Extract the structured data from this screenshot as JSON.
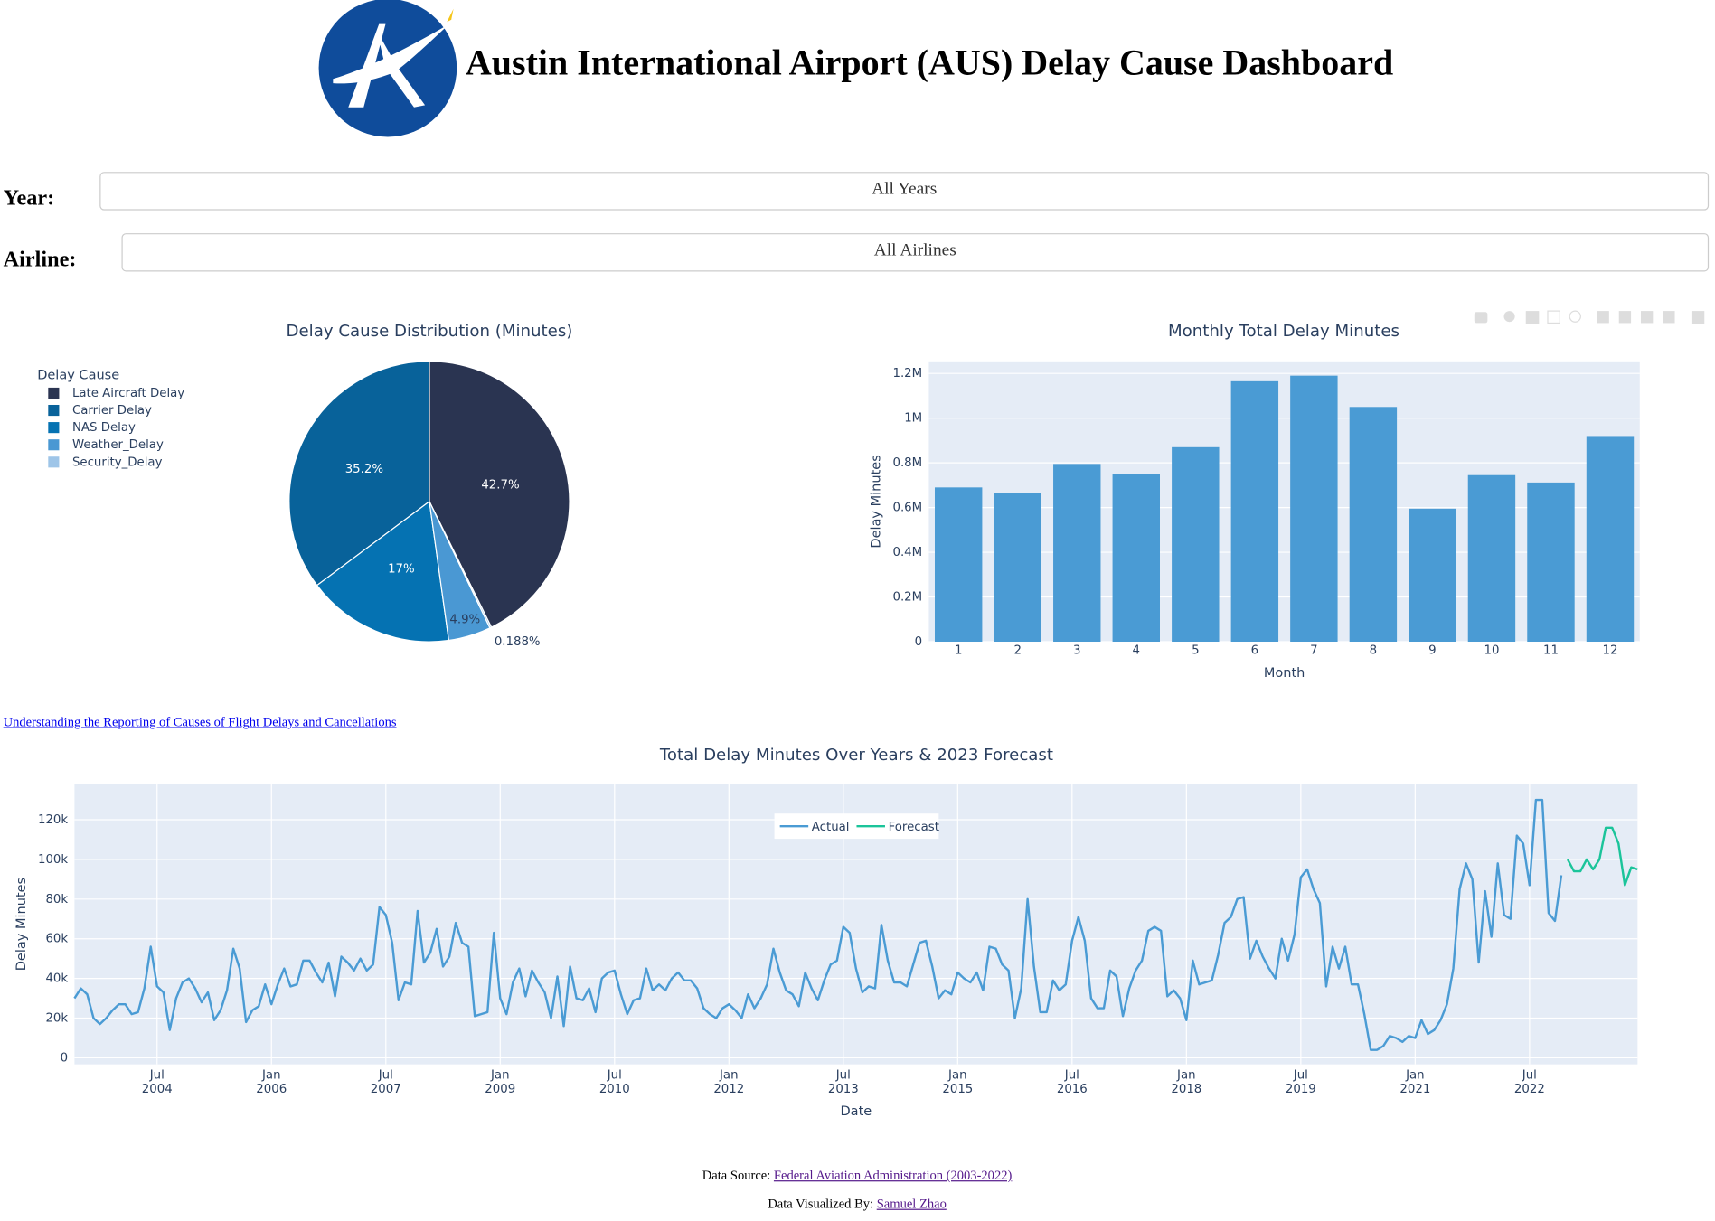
{
  "header": {
    "title": "Austin International Airport (AUS) Delay Cause Dashboard"
  },
  "filters": [
    {
      "label": "Year:",
      "value": "All Years"
    },
    {
      "label": "Airline:",
      "value": "All Airlines"
    }
  ],
  "link": "Understanding the Reporting of Causes of Flight Delays and Cancellations",
  "chart_data": [
    {
      "type": "pie",
      "title": "Delay Cause Distribution (Minutes)",
      "legend_title": "Delay Cause",
      "categories": [
        "Late Aircraft Delay",
        "Carrier Delay",
        "NAS Delay",
        "Weather_Delay",
        "Security_Delay"
      ],
      "values": [
        42.7,
        35.2,
        17,
        4.9,
        0.188
      ],
      "value_labels": [
        "42.7%",
        "35.2%",
        "17%",
        "4.9%",
        "0.188%"
      ],
      "colors": [
        "#2a3451",
        "#08629a",
        "#0572b2",
        "#4a98d3",
        "#9ec5e8"
      ]
    },
    {
      "type": "bar",
      "title": "Monthly Total Delay Minutes",
      "x_label": "Month",
      "y_label": "Delay Minutes",
      "categories": [
        1,
        2,
        3,
        4,
        5,
        6,
        7,
        8,
        9,
        10,
        11,
        12
      ],
      "values": [
        690000,
        665000,
        795000,
        750000,
        870000,
        1165000,
        1190000,
        1050000,
        595000,
        745000,
        712000,
        920000
      ],
      "color": "#4a9bd4",
      "ylim": [
        0,
        1254000
      ],
      "yticks": [
        0,
        {
          "value": 200000,
          "label": "0.2M"
        },
        {
          "value": 400000,
          "label": "0.4M"
        },
        {
          "value": 600000,
          "label": "0.6M"
        },
        {
          "value": 800000,
          "label": "0.8M"
        },
        {
          "value": 1000000,
          "label": "1M"
        },
        {
          "value": 1200000,
          "label": "1.2M"
        }
      ],
      "grid": true
    },
    {
      "type": "line",
      "title": "Total Delay Minutes Over Years & 2023 Forecast",
      "x_label": "Date",
      "y_label": "Delay Minutes",
      "xlim": [
        "2003-06",
        "2023-12"
      ],
      "xticks": [
        {
          "value": "2004-07",
          "label": "Jul 2004"
        },
        {
          "value": "2006-01",
          "label": "Jan 2006"
        },
        {
          "value": "2007-07",
          "label": "Jul 2007"
        },
        {
          "value": "2009-01",
          "label": "Jan 2009"
        },
        {
          "value": "2010-07",
          "label": "Jul 2010"
        },
        {
          "value": "2012-01",
          "label": "Jan 2012"
        },
        {
          "value": "2013-07",
          "label": "Jul 2013"
        },
        {
          "value": "2015-01",
          "label": "Jan 2015"
        },
        {
          "value": "2016-07",
          "label": "Jul 2016"
        },
        {
          "value": "2018-01",
          "label": "Jan 2018"
        },
        {
          "value": "2019-07",
          "label": "Jul 2019"
        },
        {
          "value": "2021-01",
          "label": "Jan 2021"
        },
        {
          "value": "2022-07",
          "label": "Jul 2022"
        }
      ],
      "ylim": [
        -3300,
        138000
      ],
      "yticks": [
        0,
        {
          "value": 20000,
          "label": "20k"
        },
        {
          "value": 40000,
          "label": "40k"
        },
        {
          "value": 60000,
          "label": "60k"
        },
        {
          "value": 80000,
          "label": "80k"
        },
        {
          "value": 100000,
          "label": "100k"
        },
        {
          "value": 120000,
          "label": "120k"
        }
      ],
      "grid": true,
      "series": [
        {
          "name": "Actual",
          "color": "#4a9bd4",
          "x": [
            "2003-06",
            "2003-07",
            "2003-08",
            "2003-09",
            "2003-10",
            "2003-11",
            "2003-12",
            "2004-01",
            "2004-02",
            "2004-03",
            "2004-04",
            "2004-05",
            "2004-06",
            "2004-07",
            "2004-08",
            "2004-09",
            "2004-10",
            "2004-11",
            "2004-12",
            "2005-01",
            "2005-02",
            "2005-03",
            "2005-04",
            "2005-05",
            "2005-06",
            "2005-07",
            "2005-08",
            "2005-09",
            "2005-10",
            "2005-11",
            "2005-12",
            "2006-01",
            "2006-02",
            "2006-03",
            "2006-04",
            "2006-05",
            "2006-06",
            "2006-07",
            "2006-08",
            "2006-09",
            "2006-10",
            "2006-11",
            "2006-12",
            "2007-01",
            "2007-02",
            "2007-03",
            "2007-04",
            "2007-05",
            "2007-06",
            "2007-07",
            "2007-08",
            "2007-09",
            "2007-10",
            "2007-11",
            "2007-12",
            "2008-01",
            "2008-02",
            "2008-03",
            "2008-04",
            "2008-05",
            "2008-06",
            "2008-07",
            "2008-08",
            "2008-09",
            "2008-10",
            "2008-11",
            "2008-12",
            "2009-01",
            "2009-02",
            "2009-03",
            "2009-04",
            "2009-05",
            "2009-06",
            "2009-07",
            "2009-08",
            "2009-09",
            "2009-10",
            "2009-11",
            "2009-12",
            "2010-01",
            "2010-02",
            "2010-03",
            "2010-04",
            "2010-05",
            "2010-06",
            "2010-07",
            "2010-08",
            "2010-09",
            "2010-10",
            "2010-11",
            "2010-12",
            "2011-01",
            "2011-02",
            "2011-03",
            "2011-04",
            "2011-05",
            "2011-06",
            "2011-07",
            "2011-08",
            "2011-09",
            "2011-10",
            "2011-11",
            "2011-12",
            "2012-01",
            "2012-02",
            "2012-03",
            "2012-04",
            "2012-05",
            "2012-06",
            "2012-07",
            "2012-08",
            "2012-09",
            "2012-10",
            "2012-11",
            "2012-12",
            "2013-01",
            "2013-02",
            "2013-03",
            "2013-04",
            "2013-05",
            "2013-06",
            "2013-07",
            "2013-08",
            "2013-09",
            "2013-10",
            "2013-11",
            "2013-12",
            "2014-01",
            "2014-02",
            "2014-03",
            "2014-04",
            "2014-05",
            "2014-06",
            "2014-07",
            "2014-08",
            "2014-09",
            "2014-10",
            "2014-11",
            "2014-12",
            "2015-01",
            "2015-02",
            "2015-03",
            "2015-04",
            "2015-05",
            "2015-06",
            "2015-07",
            "2015-08",
            "2015-09",
            "2015-10",
            "2015-11",
            "2015-12",
            "2016-01",
            "2016-02",
            "2016-03",
            "2016-04",
            "2016-05",
            "2016-06",
            "2016-07",
            "2016-08",
            "2016-09",
            "2016-10",
            "2016-11",
            "2016-12",
            "2017-01",
            "2017-02",
            "2017-03",
            "2017-04",
            "2017-05",
            "2017-06",
            "2017-07",
            "2017-08",
            "2017-09",
            "2017-10",
            "2017-11",
            "2017-12",
            "2018-01",
            "2018-02",
            "2018-03",
            "2018-04",
            "2018-05",
            "2018-06",
            "2018-07",
            "2018-08",
            "2018-09",
            "2018-10",
            "2018-11",
            "2018-12",
            "2019-01",
            "2019-02",
            "2019-03",
            "2019-04",
            "2019-05",
            "2019-06",
            "2019-07",
            "2019-08",
            "2019-09",
            "2019-10",
            "2019-11",
            "2019-12",
            "2020-01",
            "2020-02",
            "2020-03",
            "2020-04",
            "2020-05",
            "2020-06",
            "2020-07",
            "2020-08",
            "2020-09",
            "2020-10",
            "2020-11",
            "2020-12",
            "2021-01",
            "2021-02",
            "2021-03",
            "2021-04",
            "2021-05",
            "2021-06",
            "2021-07",
            "2021-08",
            "2021-09",
            "2021-10",
            "2021-11",
            "2021-12",
            "2022-01",
            "2022-02",
            "2022-03",
            "2022-04",
            "2022-05",
            "2022-06",
            "2022-07",
            "2022-08",
            "2022-09",
            "2022-10",
            "2022-11",
            "2022-12"
          ],
          "values": [
            30000,
            35000,
            32000,
            20000,
            17000,
            20000,
            24000,
            27000,
            27000,
            22000,
            23000,
            35000,
            56000,
            36000,
            33000,
            14000,
            30000,
            38000,
            40000,
            35000,
            28000,
            33000,
            19000,
            24000,
            34000,
            55000,
            45000,
            18000,
            24000,
            26000,
            37000,
            27000,
            37000,
            45000,
            36000,
            37000,
            49000,
            49000,
            43000,
            38000,
            48000,
            31000,
            51000,
            48000,
            44000,
            50000,
            44000,
            47000,
            76000,
            72000,
            58000,
            29000,
            38000,
            37000,
            74000,
            48000,
            53000,
            65000,
            46000,
            51000,
            68000,
            58000,
            56000,
            21000,
            22000,
            23000,
            63000,
            30000,
            22000,
            38000,
            45000,
            31000,
            44000,
            38000,
            33000,
            20000,
            41000,
            16000,
            46000,
            30000,
            29000,
            35000,
            23000,
            40000,
            43000,
            44000,
            32000,
            22000,
            29000,
            30000,
            45000,
            34000,
            37000,
            34000,
            40000,
            43000,
            39000,
            39000,
            35000,
            25000,
            22000,
            20000,
            25000,
            27000,
            24000,
            20000,
            32000,
            25000,
            30000,
            37000,
            55000,
            43000,
            34000,
            32000,
            26000,
            43000,
            35000,
            29000,
            39000,
            47000,
            49000,
            66000,
            63000,
            45000,
            33000,
            36000,
            35000,
            67000,
            49000,
            38000,
            38000,
            36000,
            47000,
            58000,
            59000,
            46000,
            30000,
            34000,
            32000,
            43000,
            40000,
            38000,
            43000,
            34000,
            56000,
            55000,
            47000,
            44000,
            20000,
            35000,
            80000,
            46000,
            23000,
            23000,
            39000,
            34000,
            37000,
            59000,
            71000,
            59000,
            30000,
            25000,
            25000,
            44000,
            41000,
            21000,
            35000,
            44000,
            49000,
            64000,
            66000,
            64000,
            31000,
            34000,
            30000,
            19000,
            49000,
            37000,
            38000,
            39000,
            52000,
            68000,
            71000,
            80000,
            81000,
            50000,
            59000,
            51000,
            45000,
            40000,
            60000,
            49000,
            62000,
            91000,
            95000,
            85000,
            78000,
            36000,
            56000,
            45000,
            56000,
            37000,
            37000,
            22000,
            4000,
            4000,
            6000,
            11000,
            10000,
            8000,
            11000,
            10000,
            19000,
            12000,
            14000,
            19000,
            27000,
            45000,
            85000,
            98000,
            90000,
            48000,
            84000,
            61000,
            98000,
            72000,
            70000,
            112000,
            108000,
            87000,
            130000,
            130000,
            73000,
            69000,
            92000
          ]
        },
        {
          "name": "Forecast",
          "color": "#1bc49a",
          "x": [
            "2023-01",
            "2023-02",
            "2023-03",
            "2023-04",
            "2023-05",
            "2023-06",
            "2023-07",
            "2023-08",
            "2023-09",
            "2023-10",
            "2023-11",
            "2023-12"
          ],
          "values": [
            100000,
            94000,
            94000,
            100000,
            95000,
            100000,
            116000,
            116000,
            108000,
            87000,
            96000,
            95000
          ]
        }
      ]
    }
  ],
  "footer": {
    "source_label": "Data Source:",
    "source_link": "Federal Aviation Administration (2003-2022)",
    "credit_label": "Data Visualized By:",
    "credit_link": "Samuel Zhao"
  }
}
